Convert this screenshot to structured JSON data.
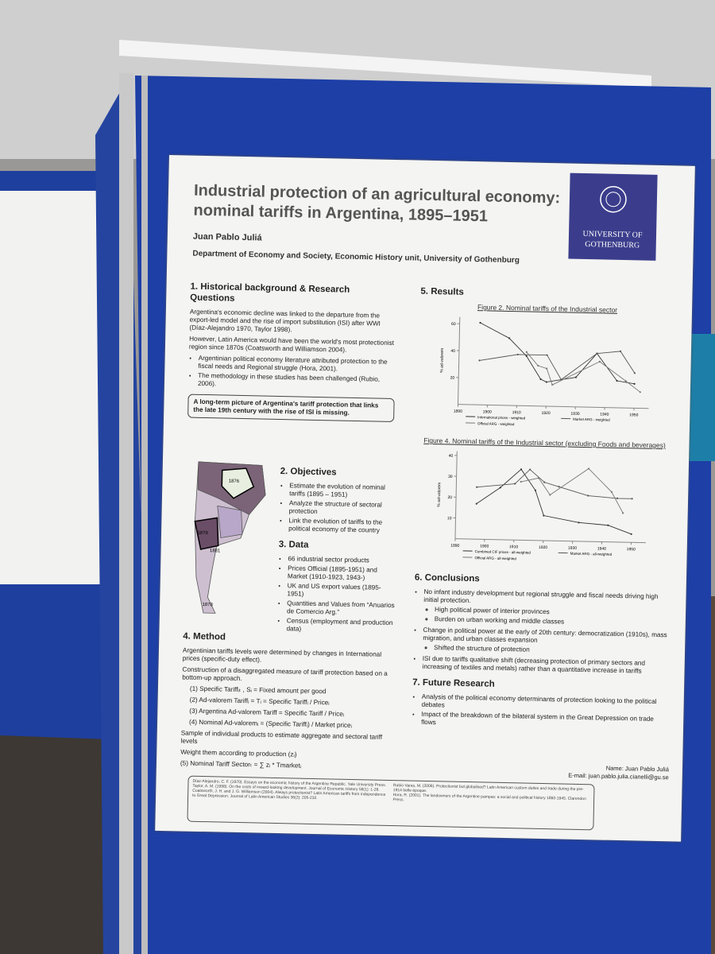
{
  "poster": {
    "title": "Industrial protection of an agricultural economy: nominal tariffs in Argentina, 1895–1951",
    "author": "Juan Pablo Juliá",
    "affiliation": "Department of Economy and Society, Economic History unit, University of Gothenburg",
    "logo": "UNIVERSITY OF GOTHENBURG",
    "sections": [
      {
        "heading": "1. Historical background & Research Questions",
        "paragraphs": [
          "Argentina's economic decline was linked to the departure from the export-led model and the rise of import substitution (ISI) after WWI (Díaz-Alejandro 1970, Taylor 1998).",
          "However, Latin America would have been the world's most protectionist region since 1870s (Coatsworth and Williamson 2004)."
        ],
        "bullets": [
          "Argentinian political economy literature attributed protection to the fiscal needs and Regional struggle (Hora, 2001).",
          "The methodology in these studies has been challenged (Rubio, 2006)."
        ],
        "callout": "A long-term picture of Argentina's tariff protection that links the late 19th century with the rise of ISI is missing."
      },
      {
        "heading": "2. Objectives",
        "bullets": [
          "Estimate the evolution of nominal tariffs (1895 – 1951)",
          "Analyze the structure of sectoral protection",
          "Link the evolution of tariffs to the political economy of the country"
        ]
      },
      {
        "heading": "3. Data",
        "bullets": [
          "66 industrial sector products",
          "Prices Official (1895-1951) and Market (1910-1923, 1943-)",
          "UK and US export values (1895-1951)",
          "Quantities and Values from “Anuarios de Comercio Arg.”",
          "Census (employment and production data)"
        ]
      },
      {
        "heading": "4. Method",
        "paragraphs": [
          "Argentinian tariffs levels were determined by changes in International prices (specific-duty effect).",
          "Construction of a disaggregated measure of tariff protection based on a bottom-up approach."
        ],
        "steps": [
          "(1) Specific Tariffᵢₜ , Sᵢ = Fixed amount per good",
          "(2) Ad-valorem Tariffᵢ = Tᵢ = Specific Tariffᵢ / Priceᵢ",
          "(3) Argentina Ad-valorem Tariff = Specific Tariff / Priceᵢ",
          "(4) Nominal Ad-valoremᵢ = (Specific Tariffᵢ) / Market priceᵢ"
        ],
        "closing": [
          "Sample of individual products to estimate aggregate and sectoral tariff levels",
          "Weight them according to production (zᵢ)",
          "(5) Nominal Tariff Sectorₜ = ∑ zᵢ * Tmarketᵢ"
        ]
      },
      {
        "heading": "5. Results"
      },
      {
        "heading": "6. Conclusions",
        "bullets": [
          {
            "text": "No infant industry development but regional struggle and fiscal needs driving high initial protection.",
            "sub": [
              "High political power of interior provinces",
              "Burden on urban working and middle classes"
            ]
          },
          {
            "text": "Change in political power at the early of 20th century: democratization (1910s), mass migration, and urban classes expansion",
            "sub": [
              "Shifted the structure of protection"
            ]
          },
          {
            "text": "ISI due to tariffs qualitative shift (decreasing protection of primary sectors and increasing of textiles and metals) rather than a quantitative increase in tariffs",
            "sub": []
          }
        ]
      },
      {
        "heading": "7. Future Research",
        "bullets": [
          "Analysis of the political economy determinants of protection looking to the political debates",
          "Impact of the breakdown of the bilateral system in the Great Depression on trade flows"
        ]
      }
    ],
    "map_labels": [
      "1876",
      "1879",
      "1881",
      "1878"
    ],
    "figures": [
      {
        "type": "line",
        "title": "Figure 2. Nominal tariffs of the Industrial sector",
        "y_label": "% ad-valorem",
        "xlim": [
          1890,
          1955
        ],
        "xticks": [
          1890,
          1900,
          1910,
          1920,
          1930,
          1940,
          1950
        ],
        "ylim": [
          0,
          65
        ],
        "yticks": [
          20,
          40,
          60
        ],
        "series": [
          {
            "name": "International prices - weighted",
            "color": "#333333",
            "x": [
              1897,
              1907,
              1913,
              1918,
              1920,
              1930,
              1937,
              1944,
              1950
            ],
            "values": [
              61,
              50,
              37,
              20,
              18,
              22,
              40,
              20,
              18
            ]
          },
          {
            "name": "Market ARG - weighted",
            "color": "#555555",
            "x": [
              1897,
              1910,
              1920,
              1925,
              1937,
              1945,
              1950
            ],
            "values": [
              33,
              38,
              38,
              20,
              40,
              42,
              26
            ]
          },
          {
            "name": "Official ARG - weighted",
            "color": "#777777",
            "x": [
              1913,
              1917,
              1920,
              1922,
              1938,
              1947,
              1952
            ],
            "values": [
              40,
              30,
              28,
              16,
              34,
              20,
              12
            ]
          }
        ]
      },
      {
        "type": "line",
        "title": "Figure 4. Nominal tariffs of the Industrial sector (excluding Foods and beverages)",
        "y_label": "% ad-valorem",
        "xlim": [
          1890,
          1955
        ],
        "xticks": [
          1890,
          1900,
          1910,
          1920,
          1930,
          1940,
          1950
        ],
        "ylim": [
          0,
          42
        ],
        "yticks": [
          10,
          20,
          30,
          40
        ],
        "series": [
          {
            "name": "Combined CIF prices - all-weighted",
            "color": "#333333",
            "x": [
              1897,
              1905,
              1912,
              1917,
              1920,
              1932,
              1942,
              1950
            ],
            "values": [
              17,
              25,
              34,
              24,
              12,
              9,
              8,
              4
            ]
          },
          {
            "name": "Market ARG - all-weighted",
            "color": "#555555",
            "x": [
              1897,
              1910,
              1915,
              1920,
              1925,
              1935,
              1945,
              1950
            ],
            "values": [
              25,
              27,
              34,
              28,
              26,
              22,
              21,
              21
            ]
          },
          {
            "name": "Official ARG - all-weighted",
            "color": "#777777",
            "x": [
              1912,
              1918,
              1922,
              1935,
              1943,
              1947
            ],
            "values": [
              28,
              30,
              22,
              35,
              24,
              14
            ]
          }
        ]
      }
    ],
    "contact": [
      "Name: Juan Pablo Juliá",
      "E-mail: juan.pablo.julia.cianelli@gu.se"
    ],
    "references": [
      "Díaz-Alejandro, C. F. (1970). Essays on the economic history of the Argentine Republic. Yale University Press.",
      "Taylor, A. M. (1998). On the costs of inward-looking development. Journal of Economic History 58(1): 1-28.",
      "Coatsworth, J. H. and J. G. Williamson (2004). Always protectionist? Latin American tariffs from independence to Great Depression. Journal of Latin American Studies 36(2): 205-232.",
      "Rubio Varas, M. (2006). Protectionist but globalised? Latin American custom duties and trade during the pre-1914 belle époque.",
      "Hora, R. (2001). The landowners of the Argentine pampas: a social and political history 1860-1945. Clarendon Press."
    ]
  }
}
